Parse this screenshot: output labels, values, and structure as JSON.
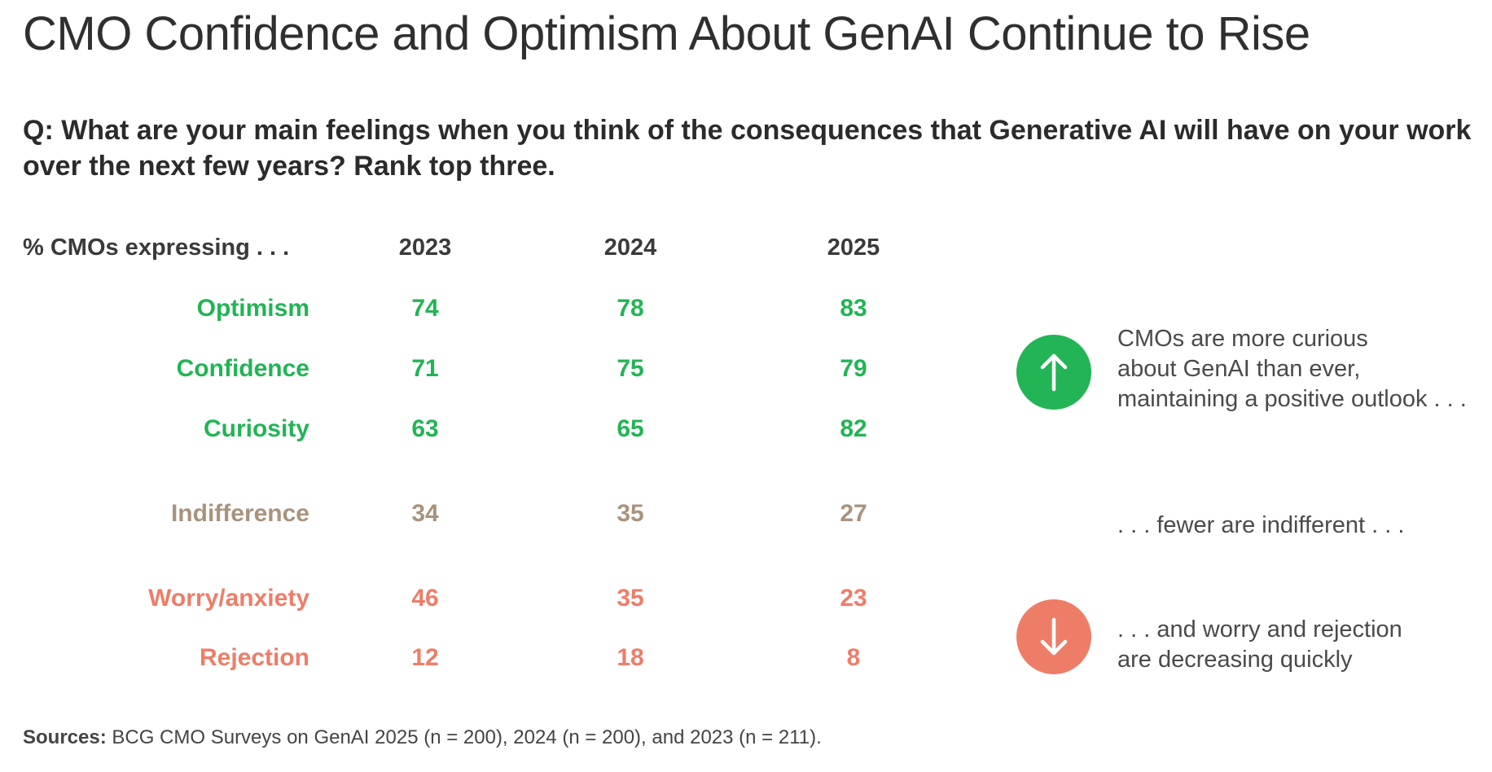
{
  "title": "CMO Confidence and Optimism About GenAI Continue to Rise",
  "question": "Q: What are your main feelings when you think of the consequences that Generative AI will have on your work over the next few years? Rank top three.",
  "colors": {
    "positive": "#22b455",
    "neutral": "#a8937e",
    "negative": "#ee7d68"
  },
  "chart_data": {
    "type": "table",
    "header_label": "% CMOs expressing . . .",
    "columns": [
      "2023",
      "2024",
      "2025"
    ],
    "rows": [
      {
        "label": "Optimism",
        "group": "positive",
        "values": [
          74,
          78,
          83
        ]
      },
      {
        "label": "Confidence",
        "group": "positive",
        "values": [
          71,
          75,
          79
        ]
      },
      {
        "label": "Curiosity",
        "group": "positive",
        "values": [
          63,
          65,
          82
        ]
      },
      {
        "label": "Indifference",
        "group": "neutral",
        "values": [
          34,
          35,
          27
        ]
      },
      {
        "label": "Worry/anxiety",
        "group": "negative",
        "values": [
          46,
          35,
          23
        ]
      },
      {
        "label": "Rejection",
        "group": "negative",
        "values": [
          12,
          18,
          8
        ]
      }
    ]
  },
  "annotations": [
    {
      "text": "CMOs are more curious\nabout GenAI than ever,\nmaintaining a positive outlook . . .",
      "icon": "arrow-up-icon",
      "color": "#22b455"
    },
    {
      "text": ". . . fewer are indifferent . . .",
      "icon": null,
      "color": null
    },
    {
      "text": ". . . and worry and rejection\nare decreasing quickly",
      "icon": "arrow-down-icon",
      "color": "#ee7d68"
    }
  ],
  "sources": {
    "label": "Sources:",
    "text": "BCG CMO Surveys on GenAI 2025 (n = 200), 2024 (n = 200), and 2023 (n = 211)."
  }
}
